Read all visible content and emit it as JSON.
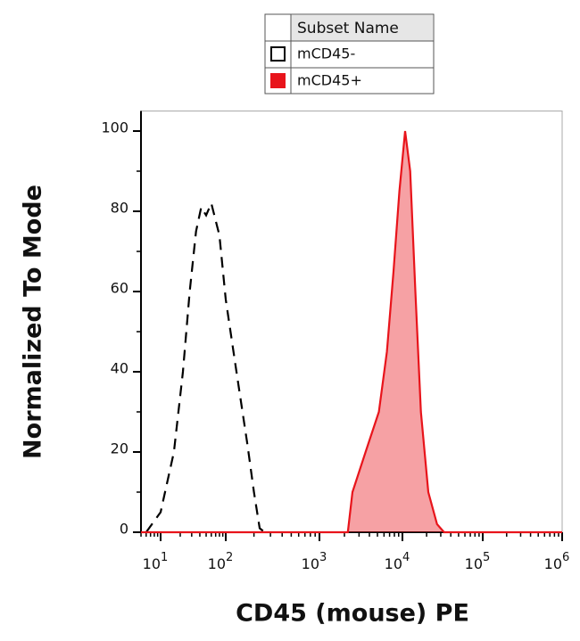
{
  "chart_data": {
    "type": "line",
    "legend_title": "Subset Name",
    "xlabel": "CD45 (mouse) PE",
    "ylabel": "Normalized To Mode",
    "xscale": "log",
    "xlim": [
      5,
      1000000
    ],
    "xticks": [
      {
        "value": 10,
        "label": "10^1"
      },
      {
        "value": 100,
        "label": "10^2"
      },
      {
        "value": 1000,
        "label": "10^3"
      },
      {
        "value": 10000,
        "label": "10^4"
      },
      {
        "value": 100000,
        "label": "10^5"
      },
      {
        "value": 1000000,
        "label": "10^6"
      }
    ],
    "ylim": [
      0,
      105
    ],
    "yticks": [
      0,
      20,
      40,
      60,
      80,
      100
    ],
    "series": [
      {
        "name": "mCD45-",
        "color": "#000000",
        "style": "dashed",
        "fill": false,
        "x": [
          6,
          10,
          16,
          22,
          28,
          35,
          42,
          50,
          60,
          80,
          100,
          130,
          170,
          200,
          230,
          260
        ],
        "values": [
          0,
          5,
          20,
          40,
          60,
          75,
          81,
          79,
          82,
          74,
          58,
          40,
          22,
          10,
          1,
          0
        ]
      },
      {
        "name": "mCD45+",
        "color": "#e8141b",
        "style": "solid",
        "fill": true,
        "x": [
          5,
          2200,
          2500,
          3600,
          5200,
          6500,
          7800,
          9200,
          10800,
          12500,
          14500,
          17000,
          21000,
          27000,
          33000,
          1000000
        ],
        "values": [
          0,
          0,
          10,
          20,
          30,
          45,
          65,
          85,
          100,
          90,
          60,
          30,
          10,
          2,
          0,
          0
        ]
      }
    ]
  }
}
